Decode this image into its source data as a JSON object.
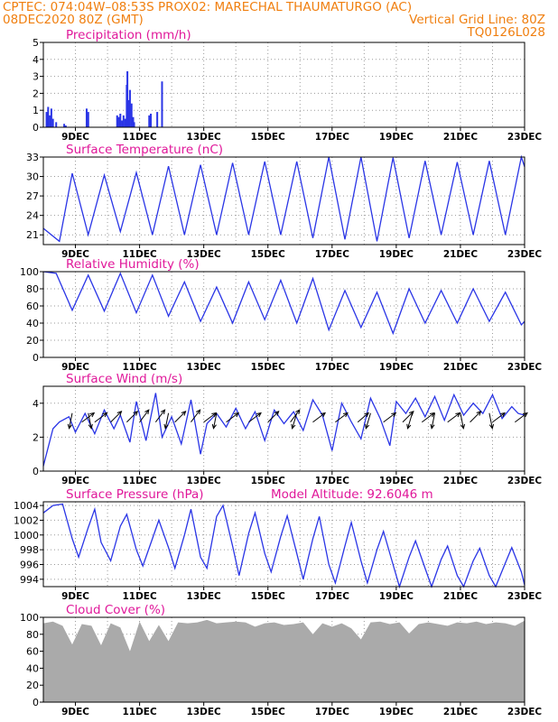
{
  "header": {
    "line1_left": "CPTEC:   074:04W–08:53S   PROX02: MARECHAL THAUMATURGO (AC)",
    "line2_left": "08DEC2020 80Z (GMT)",
    "line2_right": "Vertical Grid Line: 80Z",
    "line3_right": "TQ0126L028"
  },
  "colors": {
    "header": "#f07f0f",
    "title": "#e0189a",
    "series": "#2a35e6",
    "arrow": "#000000",
    "cloud": "#aaaaaa",
    "grid": "#9a9a9a"
  },
  "chart_data": [
    {
      "id": "precip",
      "type": "bar",
      "title": "Precipitation (mm/h)",
      "ylim": [
        0,
        5
      ],
      "yticks": [
        0,
        1,
        2,
        3,
        4,
        5
      ],
      "xlim_days": [
        8,
        23
      ],
      "xticks": [
        "9DEC",
        "11DEC",
        "13DEC",
        "15DEC",
        "17DEC",
        "19DEC",
        "21DEC",
        "23DEC"
      ],
      "x": [
        8.1,
        8.15,
        8.2,
        8.25,
        8.3,
        8.4,
        8.65,
        8.7,
        9.35,
        9.4,
        10.3,
        10.35,
        10.4,
        10.45,
        10.5,
        10.55,
        10.6,
        10.62,
        10.65,
        10.7,
        10.75,
        10.8,
        10.83,
        11.3,
        11.35,
        11.55,
        11.7
      ],
      "values": [
        0.9,
        1.2,
        0.7,
        1.1,
        0.5,
        0.3,
        0.2,
        0.1,
        1.1,
        0.9,
        0.7,
        0.6,
        0.8,
        0.4,
        0.7,
        0.5,
        2.5,
        3.3,
        1.6,
        2.2,
        1.4,
        0.6,
        0.3,
        0.7,
        0.8,
        0.9,
        2.7
      ]
    },
    {
      "id": "temp",
      "type": "line",
      "title": "Surface Temperature (nC)",
      "ylim": [
        19.5,
        33
      ],
      "yticks": [
        21,
        24,
        27,
        30,
        33
      ],
      "xlim_days": [
        8,
        23
      ],
      "xticks": [
        "9DEC",
        "11DEC",
        "13DEC",
        "15DEC",
        "17DEC",
        "19DEC",
        "21DEC",
        "23DEC"
      ],
      "x": [
        8,
        8.5,
        8.9,
        9.4,
        9.9,
        10.4,
        10.9,
        11.4,
        11.9,
        12.4,
        12.9,
        13.4,
        13.9,
        14.4,
        14.9,
        15.4,
        15.9,
        16.4,
        16.9,
        17.4,
        17.9,
        18.4,
        18.9,
        19.4,
        19.9,
        20.4,
        20.9,
        21.4,
        21.9,
        22.4,
        22.9,
        23
      ],
      "values": [
        22,
        20,
        30.5,
        21,
        30.2,
        21.5,
        30.6,
        21,
        31.6,
        21,
        31.8,
        21,
        32.1,
        21,
        32.3,
        21,
        32.3,
        20.5,
        33,
        20.3,
        33,
        20,
        32.9,
        20.5,
        32.4,
        21,
        32.2,
        21,
        32.4,
        21,
        33,
        31.5
      ]
    },
    {
      "id": "rh",
      "type": "line",
      "title": "Relative Humidity (%)",
      "ylim": [
        0,
        100
      ],
      "yticks": [
        0,
        20,
        40,
        60,
        80,
        100
      ],
      "xlim_days": [
        8,
        23
      ],
      "xticks": [
        "9DEC",
        "11DEC",
        "13DEC",
        "15DEC",
        "17DEC",
        "19DEC",
        "21DEC",
        "23DEC"
      ],
      "x": [
        8,
        8.4,
        8.9,
        9.4,
        9.9,
        10.4,
        10.9,
        11.4,
        11.9,
        12.4,
        12.9,
        13.4,
        13.9,
        14.4,
        14.9,
        15.4,
        15.9,
        16.4,
        16.9,
        17.4,
        17.9,
        18.4,
        18.9,
        19.4,
        19.9,
        20.4,
        20.9,
        21.4,
        21.9,
        22.4,
        22.9,
        23
      ],
      "values": [
        100,
        98,
        55,
        96,
        54,
        98,
        52,
        96,
        48,
        88,
        42,
        82,
        40,
        88,
        44,
        90,
        40,
        92,
        32,
        78,
        35,
        76,
        28,
        80,
        40,
        78,
        40,
        80,
        42,
        76,
        38,
        42
      ]
    },
    {
      "id": "wind",
      "type": "line",
      "title": "Surface Wind (m/s)",
      "ylim": [
        0,
        5
      ],
      "yticks": [
        0,
        2,
        4
      ],
      "xlim_days": [
        8,
        23
      ],
      "xticks": [
        "9DEC",
        "11DEC",
        "13DEC",
        "15DEC",
        "17DEC",
        "19DEC",
        "21DEC",
        "23DEC"
      ],
      "x": [
        8,
        8.3,
        8.5,
        8.8,
        9.0,
        9.3,
        9.6,
        9.9,
        10.2,
        10.4,
        10.7,
        10.9,
        11.2,
        11.5,
        11.7,
        12.0,
        12.3,
        12.6,
        12.9,
        13.1,
        13.4,
        13.7,
        14.0,
        14.3,
        14.6,
        14.9,
        15.2,
        15.5,
        15.8,
        16.1,
        16.4,
        16.7,
        17.0,
        17.3,
        17.6,
        17.9,
        18.2,
        18.5,
        18.8,
        19.0,
        19.3,
        19.6,
        19.9,
        20.2,
        20.5,
        20.8,
        21.1,
        21.4,
        21.7,
        22.0,
        22.3,
        22.6,
        22.8,
        23.0
      ],
      "values": [
        0.3,
        2.5,
        2.9,
        3.2,
        2.3,
        3.4,
        2.2,
        3.6,
        2.5,
        3.3,
        1.7,
        4.1,
        1.8,
        4.6,
        2.0,
        3.2,
        1.6,
        4.2,
        1.0,
        2.8,
        3.4,
        2.6,
        3.7,
        2.5,
        3.5,
        1.8,
        3.6,
        2.8,
        3.5,
        2.4,
        4.2,
        3.3,
        1.2,
        4.0,
        2.9,
        1.9,
        4.3,
        3.1,
        1.5,
        4.1,
        3.4,
        4.3,
        3.2,
        4.4,
        3.0,
        4.5,
        3.3,
        4.0,
        3.4,
        4.5,
        3.1,
        3.8,
        3.4,
        3.3
      ],
      "arrows": [
        {
          "x": 8.9,
          "u": -0.2,
          "v": -1
        },
        {
          "x": 9.2,
          "u": 0.8,
          "v": 0.6
        },
        {
          "x": 9.6,
          "u": 0.8,
          "v": 0.6
        },
        {
          "x": 10.1,
          "u": 0.7,
          "v": 0.7
        },
        {
          "x": 10.6,
          "u": 0.7,
          "v": 0.7
        },
        {
          "x": 11.0,
          "u": 0.6,
          "v": 0.8
        },
        {
          "x": 11.5,
          "u": 0.6,
          "v": 0.8
        },
        {
          "x": 12.1,
          "u": 0.7,
          "v": 0.7
        },
        {
          "x": 12.6,
          "u": 0.6,
          "v": 0.8
        },
        {
          "x": 13.0,
          "u": 0.8,
          "v": 0.6
        },
        {
          "x": 13.7,
          "u": 0.8,
          "v": 0.6
        },
        {
          "x": 14.4,
          "u": 0.8,
          "v": 0.6
        },
        {
          "x": 15.0,
          "u": 0.7,
          "v": 0.7
        },
        {
          "x": 15.7,
          "u": 0.6,
          "v": 0.8
        },
        {
          "x": 16.4,
          "u": 0.8,
          "v": 0.6
        },
        {
          "x": 17.1,
          "u": 0.8,
          "v": 0.6
        },
        {
          "x": 17.8,
          "u": 0.7,
          "v": 0.6
        },
        {
          "x": 18.6,
          "u": 0.8,
          "v": 0.6
        },
        {
          "x": 19.2,
          "u": 0.7,
          "v": 0.7
        },
        {
          "x": 19.8,
          "u": 0.8,
          "v": 0.6
        },
        {
          "x": 20.6,
          "u": 0.8,
          "v": 0.6
        },
        {
          "x": 21.3,
          "u": 0.7,
          "v": 0.7
        },
        {
          "x": 22.0,
          "u": 0.8,
          "v": 0.6
        },
        {
          "x": 22.7,
          "u": 0.8,
          "v": 0.6
        },
        {
          "x": 9.4,
          "u": 0.2,
          "v": -1
        },
        {
          "x": 11.9,
          "u": -0.2,
          "v": -1
        },
        {
          "x": 13.4,
          "u": -0.2,
          "v": -1
        },
        {
          "x": 15.9,
          "u": -0.3,
          "v": -1
        },
        {
          "x": 18.2,
          "u": -0.3,
          "v": -1
        },
        {
          "x": 19.5,
          "u": -0.3,
          "v": -1
        },
        {
          "x": 20.2,
          "u": -0.2,
          "v": -1
        },
        {
          "x": 21.0,
          "u": 0.2,
          "v": -1
        },
        {
          "x": 21.9,
          "u": 0.2,
          "v": -1
        }
      ]
    },
    {
      "id": "pres",
      "type": "line",
      "title": "Surface Pressure (hPa)",
      "annotation": "Model Altitude: 92.6046 m",
      "ylim": [
        993,
        1004.5
      ],
      "yticks": [
        994,
        996,
        998,
        1000,
        1002,
        1004
      ],
      "xlim_days": [
        8,
        23
      ],
      "xticks": [
        "9DEC",
        "11DEC",
        "13DEC",
        "15DEC",
        "17DEC",
        "19DEC",
        "21DEC",
        "23DEC"
      ],
      "x": [
        8,
        8.3,
        8.6,
        8.9,
        9.1,
        9.4,
        9.6,
        9.8,
        10.1,
        10.4,
        10.6,
        10.9,
        11.1,
        11.4,
        11.6,
        11.9,
        12.1,
        12.4,
        12.6,
        12.9,
        13.1,
        13.4,
        13.6,
        13.9,
        14.1,
        14.4,
        14.6,
        14.9,
        15.1,
        15.4,
        15.6,
        15.9,
        16.1,
        16.4,
        16.6,
        16.9,
        17.1,
        17.4,
        17.6,
        17.9,
        18.1,
        18.4,
        18.6,
        18.9,
        19.1,
        19.4,
        19.6,
        19.9,
        20.1,
        20.4,
        20.6,
        20.9,
        21.1,
        21.4,
        21.6,
        21.9,
        22.1,
        22.4,
        22.6,
        22.9,
        23
      ],
      "values": [
        1003,
        1004,
        1004.2,
        999.5,
        997,
        1001,
        1003.5,
        999,
        996.5,
        1001.2,
        1002.8,
        998,
        995.8,
        999.5,
        1002,
        998.3,
        995.5,
        1000,
        1003.5,
        997,
        995.5,
        1002.5,
        1004,
        998.5,
        994.5,
        1000.2,
        1003,
        997.5,
        995,
        999.8,
        1002.6,
        997.5,
        994,
        999.5,
        1002.5,
        996,
        993.5,
        998.5,
        1001.7,
        996.5,
        993.5,
        998,
        1000.5,
        996,
        993,
        997,
        999.2,
        995.5,
        993,
        996.7,
        998.5,
        994.5,
        993,
        996.5,
        998.2,
        994.5,
        993,
        996.2,
        998.3,
        995,
        993.2
      ]
    },
    {
      "id": "cloud",
      "type": "area",
      "title": "Cloud Cover (%)",
      "ylim": [
        0,
        100
      ],
      "yticks": [
        0,
        20,
        40,
        60,
        80,
        100
      ],
      "xlim_days": [
        8,
        23
      ],
      "xticks": [
        "9DEC",
        "11DEC",
        "13DEC",
        "15DEC",
        "17DEC",
        "19DEC",
        "21DEC",
        "23DEC"
      ],
      "x": [
        8,
        8.3,
        8.6,
        8.9,
        9.2,
        9.5,
        9.8,
        10.1,
        10.4,
        10.7,
        11.0,
        11.3,
        11.6,
        11.9,
        12.2,
        12.5,
        12.8,
        13.1,
        13.4,
        13.7,
        14.0,
        14.3,
        14.6,
        14.9,
        15.2,
        15.5,
        15.8,
        16.1,
        16.4,
        16.7,
        17.0,
        17.3,
        17.6,
        17.9,
        18.2,
        18.5,
        18.8,
        19.1,
        19.4,
        19.7,
        20.0,
        20.3,
        20.6,
        20.9,
        21.2,
        21.5,
        21.8,
        22.1,
        22.4,
        22.7,
        23
      ],
      "values": [
        93,
        95,
        90,
        68,
        92,
        90,
        67,
        93,
        88,
        60,
        95,
        72,
        91,
        72,
        94,
        93,
        94,
        97,
        93,
        94,
        95,
        94,
        89,
        93,
        94,
        91,
        92,
        94,
        80,
        93,
        89,
        93,
        87,
        74,
        94,
        95,
        92,
        94,
        81,
        92,
        94,
        92,
        90,
        94,
        93,
        95,
        92,
        94,
        93,
        90,
        96
      ]
    }
  ]
}
